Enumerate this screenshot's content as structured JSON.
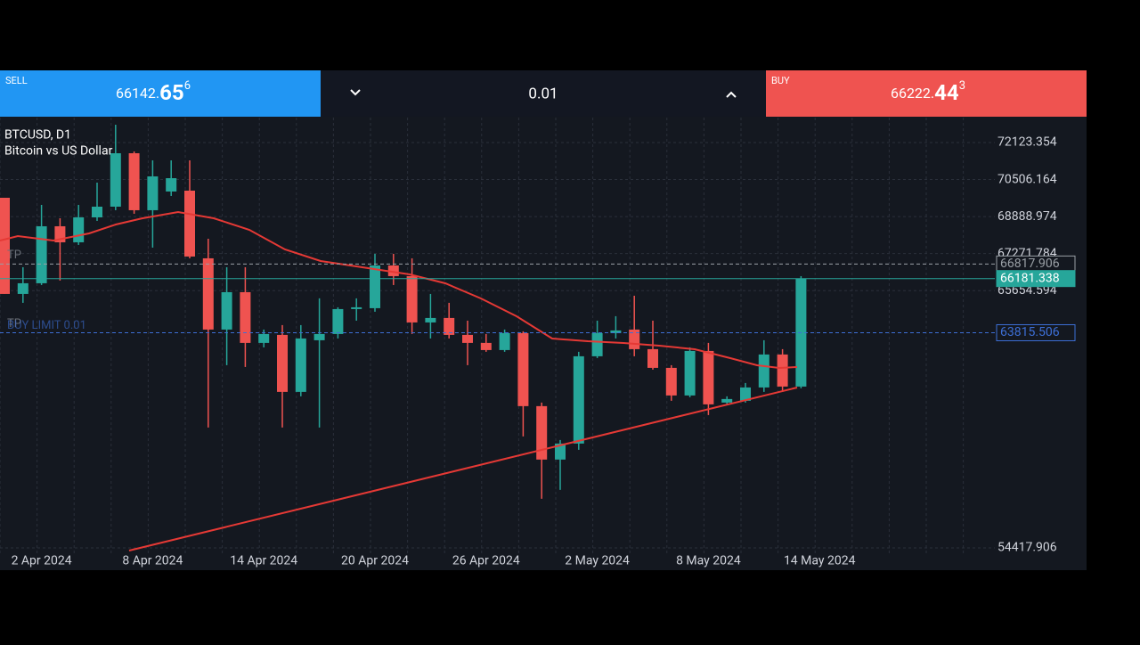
{
  "trade_bar": {
    "sell": {
      "label": "SELL",
      "price_main": "66142.",
      "price_big": "65",
      "price_sup": "6"
    },
    "lot": "0.01",
    "buy": {
      "label": "BUY",
      "price_main": "66222.",
      "price_big": "44",
      "price_sup": "3"
    }
  },
  "chart": {
    "type": "candlestick",
    "symbol": "BTCUSD, D1",
    "description": "Bitcoin vs US Dollar",
    "ylim": [
      54300,
      73213
    ],
    "yticks": [
      72123.354,
      70506.164,
      68888.974,
      67271.784,
      65654.594,
      54417.906
    ],
    "x_labels": [
      "2 Apr 2024",
      "8 Apr 2024",
      "14 Apr 2024",
      "20 Apr 2024",
      "26 Apr 2024",
      "2 May 2024",
      "8 May 2024",
      "14 May 2024"
    ],
    "up_color": "#26a69a",
    "down_color": "#ef5350",
    "open": [
      69711,
      65510,
      65977,
      68466,
      67766,
      68855,
      69322,
      71656,
      69167,
      69984,
      70022,
      67066,
      63954,
      65588,
      63371,
      63721,
      61231,
      63487,
      63760,
      64849,
      64888,
      66755,
      66288,
      64265,
      64460,
      63721,
      63371,
      63059,
      63799,
      60609,
      58275,
      58975,
      62787,
      63799,
      63954,
      63098,
      62281,
      61075,
      63020,
      60764,
      60842,
      61425,
      62865,
      61464
    ],
    "high": [
      69711,
      66677,
      69400,
      68816,
      69400,
      70373,
      72901,
      71734,
      71345,
      71345,
      71345,
      67922,
      66677,
      66677,
      63954,
      64149,
      64149,
      65316,
      64927,
      65316,
      67261,
      67261,
      67066,
      65510,
      65121,
      64343,
      63760,
      63954,
      63876,
      60764,
      59130,
      62982,
      64343,
      64538,
      65432,
      64343,
      62398,
      63176,
      63371,
      61037,
      61620,
      63487,
      63098,
      66288
    ],
    "low": [
      65510,
      65121,
      65899,
      66094,
      67650,
      68700,
      69167,
      69011,
      67533,
      69789,
      67066,
      59675,
      62398,
      62320,
      63176,
      59675,
      61037,
      59675,
      63565,
      64343,
      64732,
      65899,
      63760,
      63565,
      63565,
      62398,
      62982,
      62982,
      59286,
      56563,
      56952,
      58701,
      62709,
      63565,
      62787,
      62203,
      60842,
      60998,
      60220,
      60648,
      60764,
      61231,
      61231,
      61387
    ],
    "close": [
      65510,
      65977,
      68466,
      67766,
      68855,
      69322,
      71656,
      69167,
      70645,
      70567,
      67144,
      63954,
      65588,
      63371,
      63760,
      61231,
      63565,
      63760,
      64849,
      64927,
      66755,
      66288,
      64265,
      64460,
      63721,
      63371,
      63059,
      63799,
      60609,
      58275,
      58975,
      62787,
      63799,
      63915,
      63098,
      62281,
      61075,
      63020,
      60686,
      60920,
      61425,
      62865,
      61464,
      66181
    ],
    "levels": [
      {
        "label": "TP",
        "price": 66817.906,
        "color": "#9aa0a6"
      },
      {
        "price": 66181.338,
        "color": "#26a69a"
      },
      {
        "label": "TP",
        "order": "BUY LIMIT 0.01",
        "price": 63815.506,
        "color": "#3d6fd6"
      }
    ]
  }
}
